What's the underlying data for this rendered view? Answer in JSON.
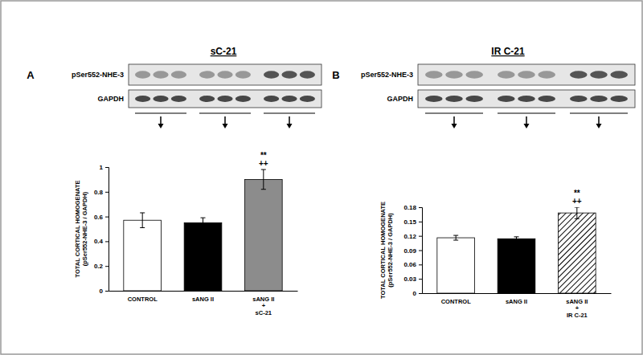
{
  "chart_data": [
    {
      "type": "bar",
      "panel": "A",
      "title": "sC-21",
      "blot_labels": [
        "pSer552-NHE-3",
        "GAPDH"
      ],
      "ylabel": [
        "TOTAL CORTICAL HOMOGENATE",
        "(pSer552-NHE-3 / GAPDH)"
      ],
      "categories": [
        "CONTROL",
        "sANG II",
        "sANG II + sC-21"
      ],
      "values": [
        0.57,
        0.55,
        0.9
      ],
      "errors": [
        0.06,
        0.04,
        0.08
      ],
      "colors": [
        "#ffffff",
        "#000000",
        "#8c8c8c"
      ],
      "ylim": [
        0,
        1
      ],
      "yticks": [
        0,
        0.2,
        0.4,
        0.6,
        0.8,
        1
      ],
      "annotations": [
        {
          "text": "**",
          "category": "sANG II + sC-21"
        },
        {
          "text": "++",
          "category": "sANG II + sC-21"
        }
      ]
    },
    {
      "type": "bar",
      "panel": "B",
      "title": "IR C-21",
      "blot_labels": [
        "pSer552-NHE-3",
        "GAPDH"
      ],
      "ylabel": [
        "TOTAL CORTICAL HOMOGENATE",
        "(pSer552-NHE-3 / GAPDH)"
      ],
      "categories": [
        "CONTROL",
        "sANG II",
        "sANG II + IR C-21"
      ],
      "values": [
        0.116,
        0.114,
        0.168
      ],
      "errors": [
        0.005,
        0.004,
        0.012
      ],
      "colors": [
        "#ffffff",
        "#000000",
        "#ffffff"
      ],
      "line_style": "hatched",
      "ylim": [
        0,
        0.18
      ],
      "yticks": [
        0,
        0.03,
        0.06,
        0.09,
        0.12,
        0.15,
        0.18
      ],
      "annotations": [
        {
          "text": "**",
          "category": "sANG II + IR C-21"
        },
        {
          "text": "++",
          "category": "sANG II + IR C-21"
        }
      ]
    }
  ]
}
